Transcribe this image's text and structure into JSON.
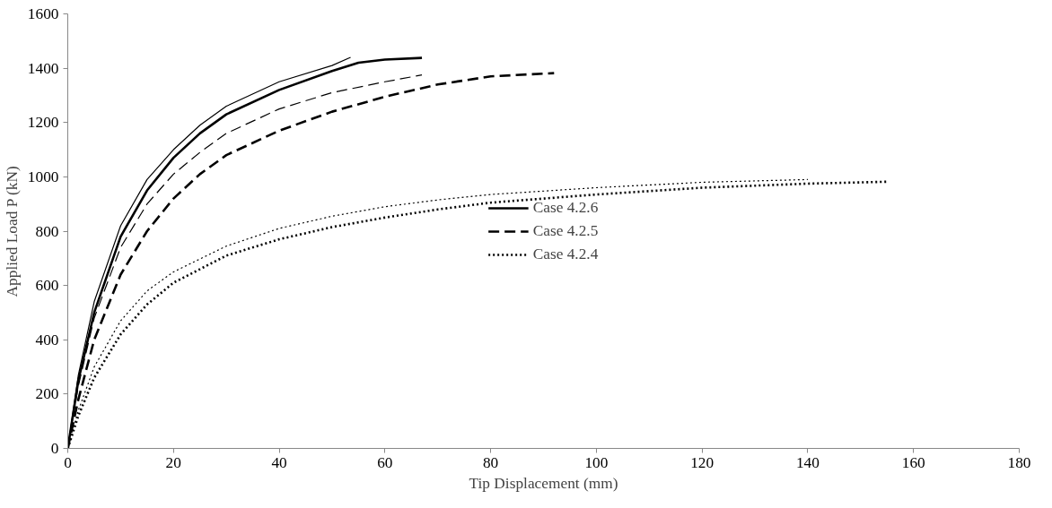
{
  "chart_data": {
    "type": "line",
    "xlabel": "Tip Displacement (mm)",
    "ylabel": "Applied Load P (kN)",
    "xlim": [
      0,
      180
    ],
    "ylim": [
      0,
      1600
    ],
    "xticks": [
      0,
      20,
      40,
      60,
      80,
      100,
      120,
      140,
      160,
      180
    ],
    "yticks": [
      0,
      200,
      400,
      600,
      800,
      1000,
      1200,
      1400,
      1600
    ],
    "grid": false,
    "legend": "center",
    "marker": "none",
    "series": [
      {
        "name": "Case 4.2.6",
        "color": "#000000",
        "line_style": "solid",
        "x": [
          0,
          2,
          5,
          10,
          15,
          20,
          25,
          30,
          40,
          50,
          55,
          60,
          67
        ],
        "values": [
          0,
          250,
          500,
          780,
          950,
          1070,
          1160,
          1230,
          1320,
          1390,
          1420,
          1432,
          1438
        ]
      },
      {
        "name": "Case 4.2.5",
        "color": "#000000",
        "line_style": "dashed",
        "x": [
          0,
          2,
          5,
          10,
          15,
          20,
          25,
          30,
          40,
          50,
          60,
          70,
          80,
          92
        ],
        "values": [
          0,
          180,
          400,
          640,
          800,
          920,
          1010,
          1080,
          1170,
          1240,
          1295,
          1340,
          1370,
          1382
        ]
      },
      {
        "name": "Case 4.2.4",
        "color": "#000000",
        "line_style": "dotted",
        "x": [
          0,
          2,
          5,
          10,
          15,
          20,
          30,
          40,
          50,
          60,
          70,
          80,
          100,
          120,
          140,
          155
        ],
        "values": [
          0,
          120,
          260,
          420,
          530,
          610,
          710,
          770,
          815,
          850,
          880,
          905,
          935,
          960,
          975,
          982
        ]
      },
      {
        "color": "#000000",
        "line_style": "solid",
        "x": [
          0,
          2,
          5,
          10,
          15,
          20,
          25,
          30,
          40,
          50,
          53.5
        ],
        "values": [
          0,
          270,
          540,
          820,
          990,
          1100,
          1190,
          1260,
          1350,
          1410,
          1440
        ]
      },
      {
        "color": "#000000",
        "line_style": "dashed",
        "x": [
          0,
          2,
          5,
          10,
          15,
          20,
          25,
          30,
          40,
          50,
          60,
          67
        ],
        "values": [
          0,
          230,
          480,
          740,
          900,
          1010,
          1090,
          1160,
          1250,
          1310,
          1350,
          1375
        ]
      },
      {
        "color": "#000000",
        "line_style": "dotted",
        "x": [
          0,
          2,
          5,
          10,
          15,
          20,
          30,
          40,
          50,
          60,
          70,
          80,
          100,
          120,
          140
        ],
        "values": [
          0,
          140,
          300,
          470,
          580,
          650,
          745,
          810,
          855,
          890,
          915,
          935,
          960,
          980,
          990
        ]
      }
    ]
  }
}
